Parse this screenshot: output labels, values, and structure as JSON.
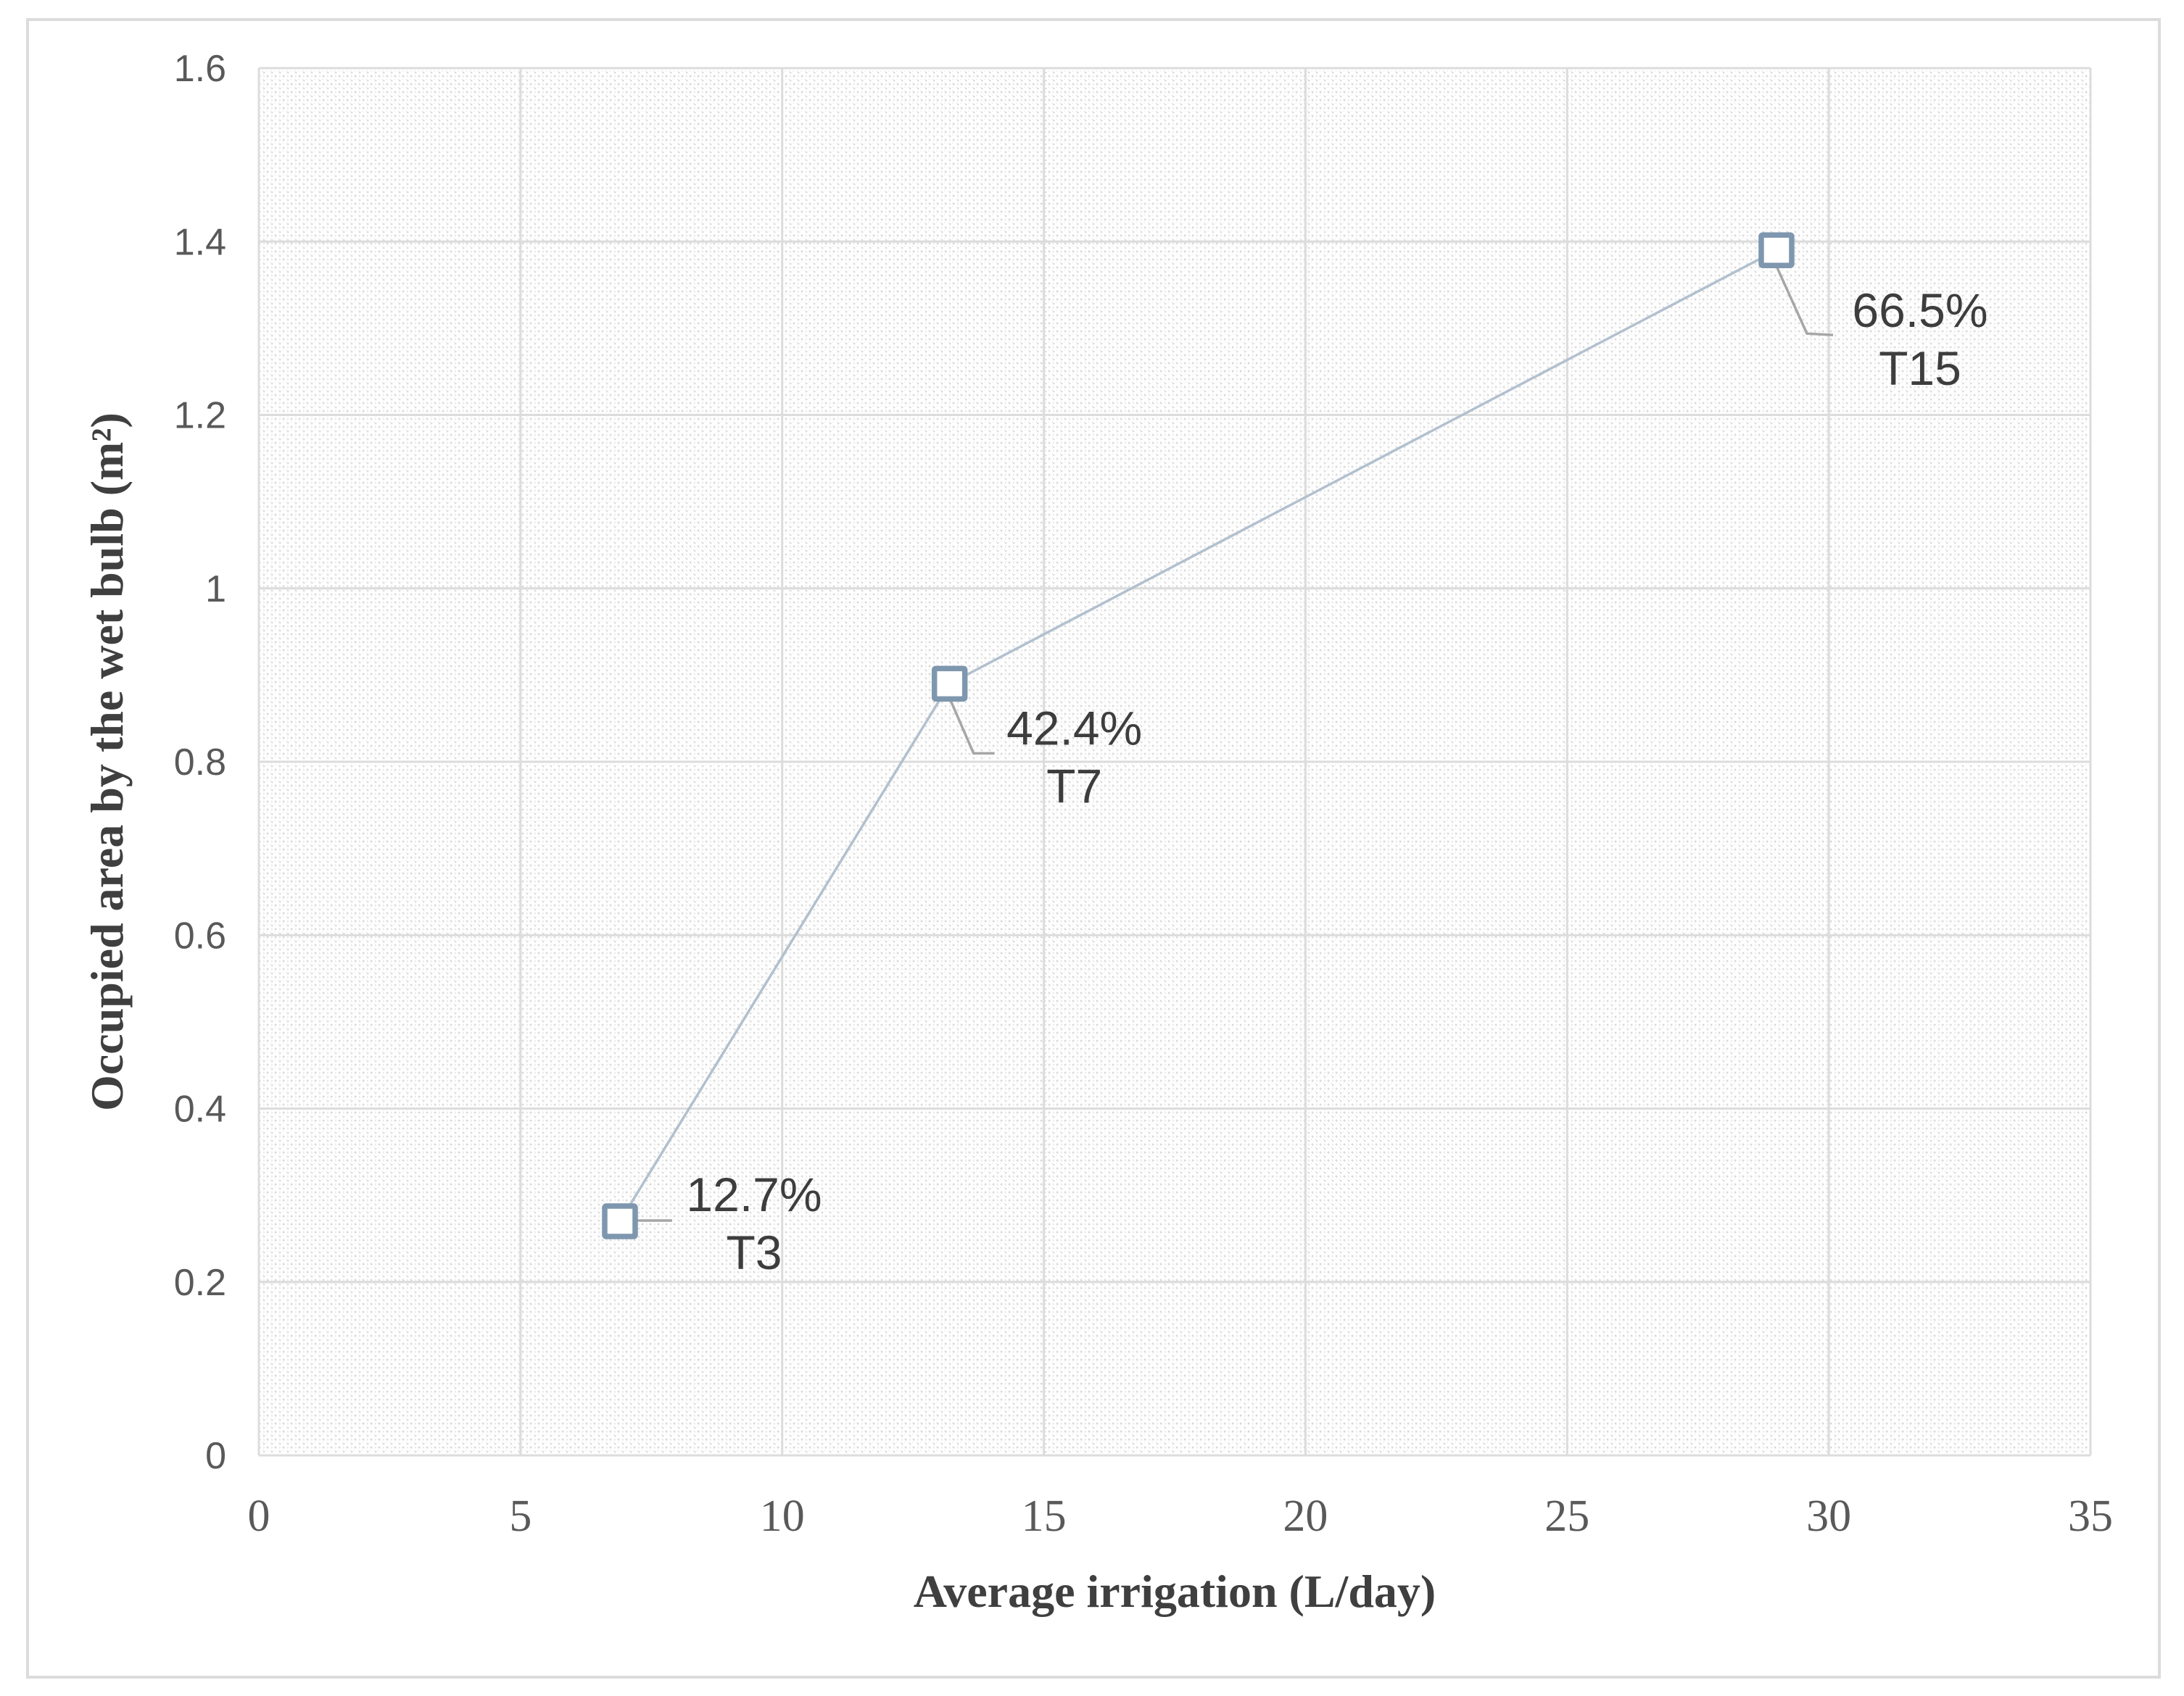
{
  "figure": {
    "background_color": "#ffffff",
    "border_color": "#dcdcdc"
  },
  "chart_data": {
    "type": "line",
    "title": "",
    "xlabel": "Average irrigation (L/day)",
    "ylabel": "Occupied area by the wet bulb (m²)",
    "xlim": [
      0,
      35
    ],
    "ylim": [
      0,
      1.6
    ],
    "grid": true,
    "legend": "none",
    "plot_background_pattern": "light-downward-diagonal-hatch",
    "xticks": {
      "values": [
        0,
        5,
        10,
        15,
        20,
        25,
        30,
        35
      ],
      "labels": [
        "0",
        "5",
        "10",
        "15",
        "20",
        "25",
        "30",
        "35"
      ]
    },
    "yticks": {
      "values": [
        0,
        0.2,
        0.4,
        0.6,
        0.8,
        1,
        1.2,
        1.4,
        1.6
      ],
      "labels": [
        "0",
        "0.2",
        "0.4",
        "0.6",
        "0.8",
        "1",
        "1.2",
        "1.4",
        "1.6"
      ]
    },
    "series": [
      {
        "name": "Occupied area by the wet bulb",
        "marker": "open-square",
        "points": [
          {
            "x": 6.9,
            "y": 0.27,
            "percent_label": "12.7%",
            "treatment_label": "T3"
          },
          {
            "x": 13.2,
            "y": 0.89,
            "percent_label": "42.4%",
            "treatment_label": "T7"
          },
          {
            "x": 29.0,
            "y": 1.39,
            "percent_label": "66.5%",
            "treatment_label": "T15"
          }
        ]
      }
    ],
    "colors": {
      "series_line": "#b2c0ce",
      "marker_stroke": "#7e97af",
      "marker_fill": "#ffffff",
      "leader_line": "#a6a6a6",
      "gridline": "#dcdcdc",
      "hatch_pattern": "#dbdbdb",
      "tick_text": "#595959",
      "axis_title_text": "#3f3f3f",
      "data_label_text": "#3d3d3d"
    }
  }
}
